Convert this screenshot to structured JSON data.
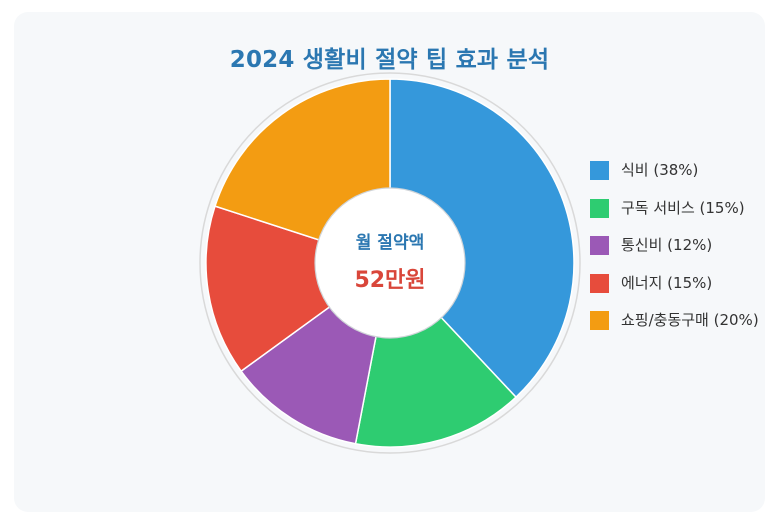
{
  "chart_data": {
    "type": "pie",
    "title": "2024 생활비 절약 팁 효과 분석",
    "center_label": "월 절약액",
    "center_value": "52만원",
    "categories": [
      "식비 (38%)",
      "구독 서비스 (15%)",
      "통신비 (12%)",
      "에너지 (15%)",
      "쇼핑/충동구매 (20%)"
    ],
    "values": [
      38,
      15,
      12,
      15,
      20
    ],
    "colors": [
      "#3598db",
      "#2ecc71",
      "#9b59b6",
      "#e74c3c",
      "#f39c12"
    ],
    "legend_position": "right",
    "donut": true
  }
}
